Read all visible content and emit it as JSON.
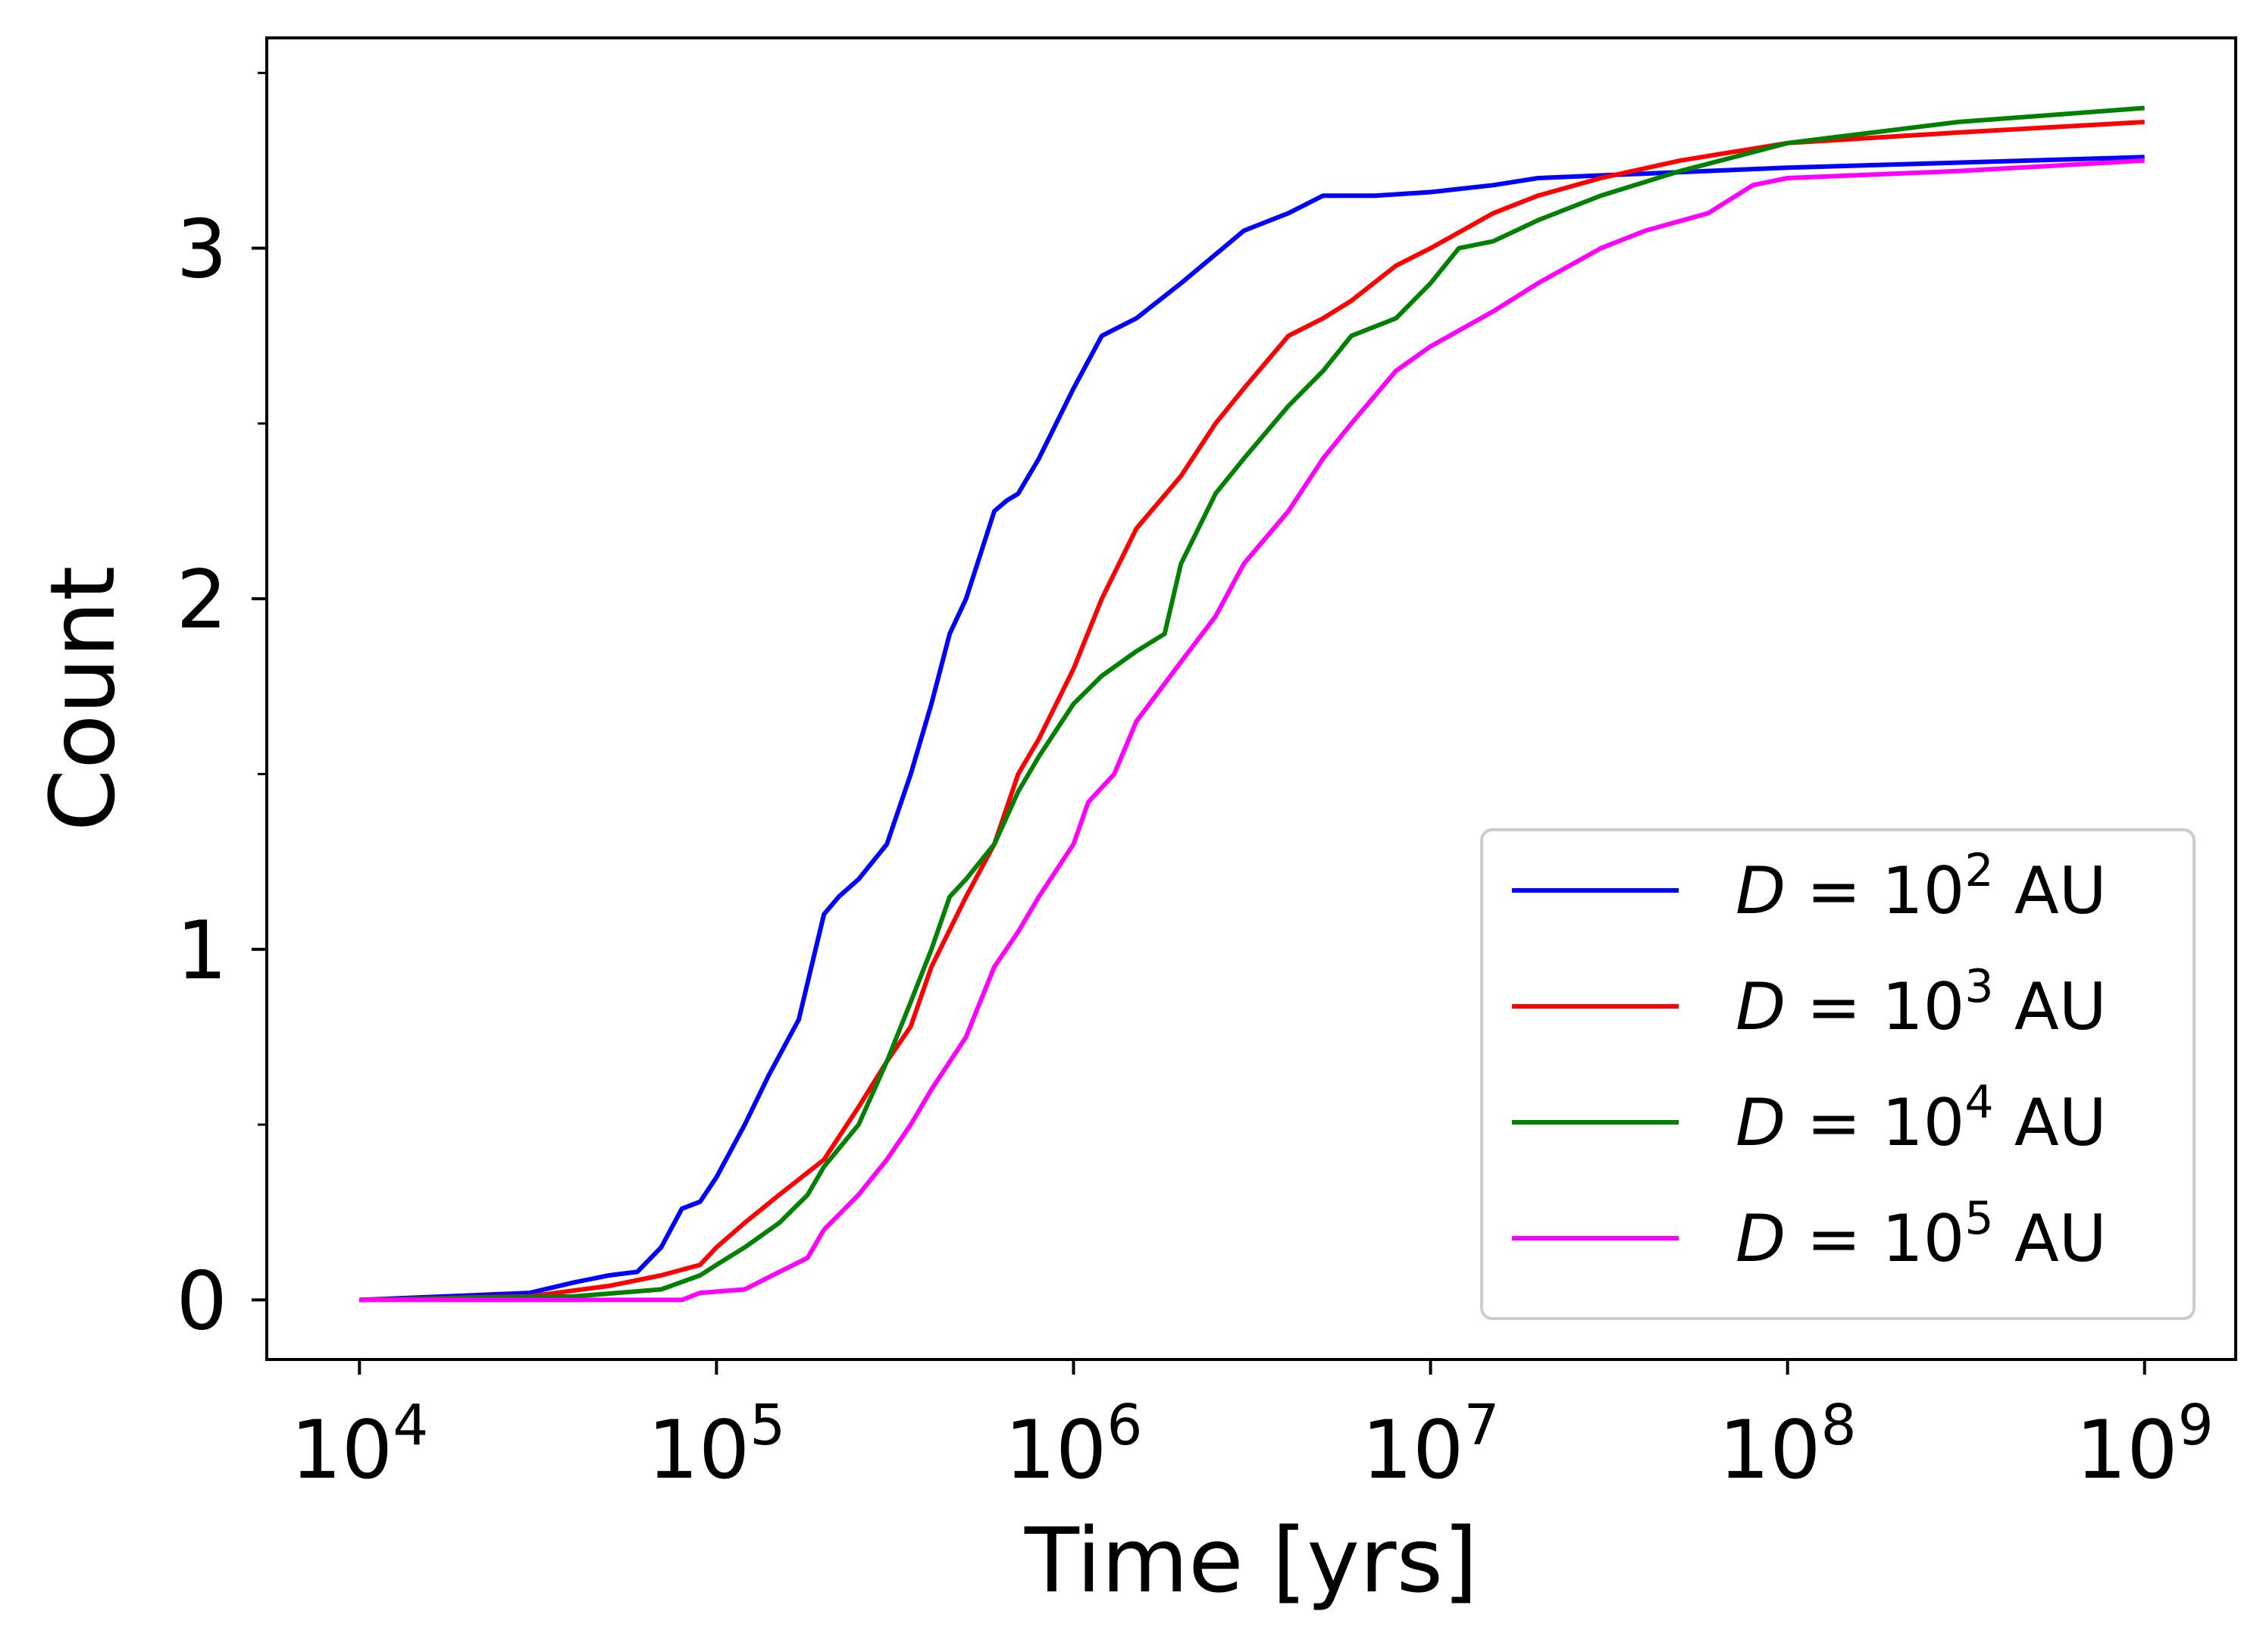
{
  "chart_data": {
    "type": "line",
    "title": "",
    "xlabel": "Time [yrs]",
    "ylabel": "Count",
    "xscale": "log",
    "xlim": [
      5500,
      1800000000
    ],
    "ylim": [
      -0.17,
      3.6
    ],
    "grid": false,
    "legend_position": "lower-right",
    "x_ticks": [
      {
        "value": 10000,
        "base": "10",
        "exp": "4"
      },
      {
        "value": 100000,
        "base": "10",
        "exp": "5"
      },
      {
        "value": 1000000,
        "base": "10",
        "exp": "6"
      },
      {
        "value": 10000000,
        "base": "10",
        "exp": "7"
      },
      {
        "value": 100000000,
        "base": "10",
        "exp": "8"
      },
      {
        "value": 1000000000,
        "base": "10",
        "exp": "9"
      }
    ],
    "y_ticks": [
      {
        "value": 0,
        "label": "0"
      },
      {
        "value": 1,
        "label": "1"
      },
      {
        "value": 2,
        "label": "2"
      },
      {
        "value": 3,
        "label": "3"
      }
    ],
    "y_minor_ticks": [
      0.5,
      1.5,
      2.5,
      3.5
    ],
    "series": [
      {
        "name": "D = 10^2 AU",
        "label_var": "D",
        "label_eq": " = 10",
        "label_exp": "2",
        "label_unit": " AU",
        "color": "#0000ff",
        "x": [
          10000,
          30000,
          40000,
          50000,
          60000,
          70000,
          80000,
          90000,
          100000,
          120000,
          140000,
          170000,
          200000,
          220000,
          250000,
          300000,
          350000,
          400000,
          450000,
          500000,
          600000,
          650000,
          700000,
          800000,
          1000000,
          1200000,
          1500000,
          2000000,
          3000000,
          4000000,
          5000000,
          7000000,
          10000000,
          15000000,
          20000000,
          100000000,
          1000000000
        ],
        "y": [
          0,
          0.02,
          0.05,
          0.07,
          0.08,
          0.15,
          0.26,
          0.28,
          0.35,
          0.5,
          0.64,
          0.8,
          1.1,
          1.15,
          1.2,
          1.3,
          1.5,
          1.7,
          1.9,
          2.0,
          2.25,
          2.28,
          2.3,
          2.4,
          2.6,
          2.75,
          2.8,
          2.9,
          3.05,
          3.1,
          3.15,
          3.15,
          3.16,
          3.18,
          3.2,
          3.23,
          3.26
        ]
      },
      {
        "name": "D = 10^3 AU",
        "label_var": "D",
        "label_eq": " = 10",
        "label_exp": "3",
        "label_unit": " AU",
        "color": "#ff0000",
        "x": [
          10000,
          30000,
          50000,
          70000,
          90000,
          100000,
          120000,
          150000,
          200000,
          250000,
          300000,
          350000,
          400000,
          500000,
          600000,
          700000,
          800000,
          1000000,
          1200000,
          1500000,
          2000000,
          2500000,
          3000000,
          4000000,
          5000000,
          6000000,
          8000000,
          10000000,
          15000000,
          20000000,
          30000000,
          50000000,
          100000000,
          300000000,
          1000000000
        ],
        "y": [
          0,
          0.01,
          0.04,
          0.07,
          0.1,
          0.15,
          0.22,
          0.3,
          0.4,
          0.55,
          0.68,
          0.78,
          0.95,
          1.15,
          1.3,
          1.5,
          1.6,
          1.8,
          2.0,
          2.2,
          2.35,
          2.5,
          2.6,
          2.75,
          2.8,
          2.85,
          2.95,
          3.0,
          3.1,
          3.15,
          3.2,
          3.25,
          3.3,
          3.33,
          3.36
        ]
      },
      {
        "name": "D = 10^4 AU",
        "label_var": "D",
        "label_eq": " = 10",
        "label_exp": "4",
        "label_unit": " AU",
        "color": "#008000",
        "x": [
          10000,
          40000,
          70000,
          90000,
          100000,
          120000,
          150000,
          180000,
          200000,
          250000,
          300000,
          350000,
          400000,
          450000,
          500000,
          600000,
          700000,
          800000,
          1000000,
          1200000,
          1500000,
          1800000,
          2000000,
          2500000,
          3000000,
          4000000,
          5000000,
          6000000,
          8000000,
          10000000,
          12000000,
          15000000,
          20000000,
          30000000,
          50000000,
          100000000,
          300000000,
          1000000000
        ],
        "y": [
          0,
          0.01,
          0.03,
          0.07,
          0.1,
          0.15,
          0.22,
          0.3,
          0.38,
          0.5,
          0.68,
          0.85,
          1.0,
          1.15,
          1.2,
          1.3,
          1.45,
          1.55,
          1.7,
          1.78,
          1.85,
          1.9,
          2.1,
          2.3,
          2.4,
          2.55,
          2.65,
          2.75,
          2.8,
          2.9,
          3.0,
          3.02,
          3.08,
          3.15,
          3.22,
          3.3,
          3.36,
          3.4
        ]
      },
      {
        "name": "D = 10^5 AU",
        "label_var": "D",
        "label_eq": " = 10",
        "label_exp": "5",
        "label_unit": " AU",
        "color": "#ff00ff",
        "x": [
          10000,
          80000,
          90000,
          120000,
          150000,
          180000,
          200000,
          250000,
          300000,
          350000,
          400000,
          500000,
          600000,
          700000,
          800000,
          1000000,
          1100000,
          1300000,
          1500000,
          2000000,
          2500000,
          3000000,
          4000000,
          5000000,
          6000000,
          8000000,
          10000000,
          15000000,
          20000000,
          30000000,
          40000000,
          60000000,
          80000000,
          100000000,
          300000000,
          1000000000
        ],
        "y": [
          0,
          0.0,
          0.02,
          0.03,
          0.08,
          0.12,
          0.2,
          0.3,
          0.4,
          0.5,
          0.6,
          0.75,
          0.95,
          1.05,
          1.15,
          1.3,
          1.42,
          1.5,
          1.65,
          1.82,
          1.95,
          2.1,
          2.25,
          2.4,
          2.5,
          2.65,
          2.72,
          2.82,
          2.9,
          3.0,
          3.05,
          3.1,
          3.18,
          3.2,
          3.22,
          3.25
        ]
      }
    ]
  }
}
